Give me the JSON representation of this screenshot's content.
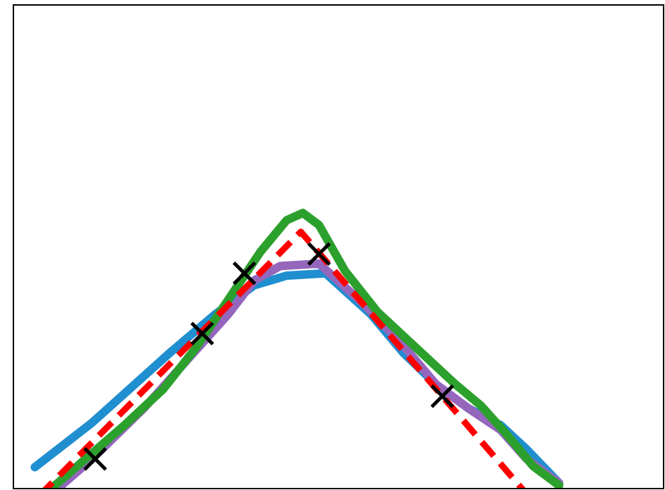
{
  "chart_data": {
    "type": "line",
    "title": "",
    "xlabel": "",
    "ylabel": "",
    "xlim": [
      0,
      100
    ],
    "ylim": [
      0,
      100
    ],
    "grid": false,
    "legend": "none",
    "axes_frame": true,
    "tick_labels_visible": false,
    "series": [
      {
        "color": "#ff0000",
        "style": "dashed",
        "x": [
          3.9,
          44.2,
          79.2
        ],
        "y": [
          -1.6,
          53.1,
          -1.6
        ]
      },
      {
        "color": "#1f8fd0",
        "style": "solid",
        "x": [
          3.2,
          12.0,
          24.0,
          31.0,
          37.0,
          42.0,
          48.0,
          55.0,
          60.0,
          65.0,
          70.0,
          75.0,
          79.0,
          84.0
        ],
        "y": [
          4.3,
          13.5,
          28.0,
          36.0,
          42.0,
          44.0,
          44.5,
          36.0,
          28.0,
          21.5,
          16.5,
          13.0,
          8.0,
          1.0
        ]
      },
      {
        "color": "#9467bd",
        "style": "solid",
        "x": [
          6.0,
          12.0,
          20.0,
          27.0,
          33.0,
          37.0,
          41.0,
          47.0,
          54.0,
          60.0,
          65.0,
          70.0,
          75.0,
          79.0,
          84.0
        ],
        "y": [
          -1.0,
          6.0,
          16.5,
          27.0,
          36.0,
          43.0,
          46.0,
          46.5,
          38.0,
          29.5,
          21.5,
          16.5,
          12.0,
          6.0,
          1.0
        ]
      },
      {
        "color": "#2ca02c",
        "style": "solid",
        "x": [
          5.0,
          11.0,
          17.0,
          23.0,
          28.0,
          33.0,
          38.0,
          42.0,
          44.5,
          47.0,
          51.0,
          56.0,
          60.0,
          64.0,
          68.0,
          72.0,
          76.0,
          80.0,
          84.0
        ],
        "y": [
          -1.0,
          6.0,
          13.0,
          20.5,
          29.0,
          39.0,
          49.0,
          55.5,
          57.0,
          54.5,
          45.0,
          36.5,
          31.5,
          26.5,
          21.5,
          17.0,
          11.0,
          4.5,
          0.5
        ]
      }
    ],
    "markers": {
      "symbol": "x",
      "color": "#000000",
      "x": [
        12.5,
        29.0,
        35.5,
        47.0,
        66.0
      ],
      "y": [
        6.0,
        32.0,
        44.5,
        48.5,
        19.0
      ]
    }
  }
}
